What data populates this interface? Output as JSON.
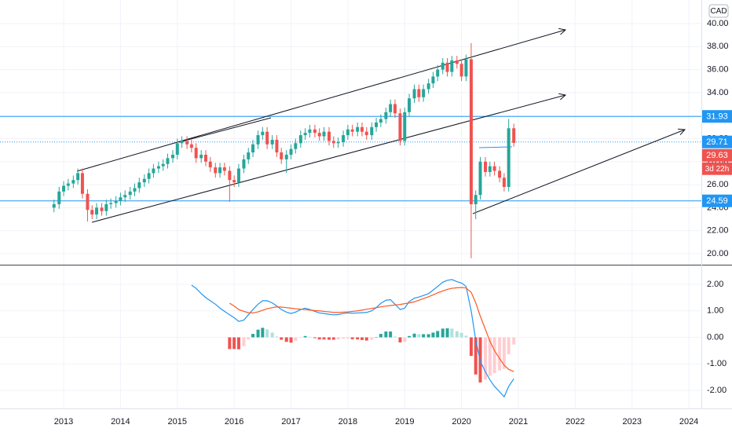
{
  "chart_data": {
    "type": "candlestick",
    "currency": "CAD",
    "last_price": 29.63,
    "countdown": "3d 22h",
    "grid": true,
    "up_color": "#26a69a",
    "down_color": "#ef5350",
    "xlim": [
      2011.88,
      2024.22
    ],
    "xticks": [
      2013,
      2014,
      2015,
      2016,
      2017,
      2018,
      2019,
      2020,
      2021,
      2022,
      2023,
      2024
    ],
    "ylim": [
      19.04,
      42.05
    ],
    "yticks": [
      {
        "value": 20,
        "label": "20.00"
      },
      {
        "value": 22,
        "label": "22.00"
      },
      {
        "value": 24,
        "label": "24.00"
      },
      {
        "value": 26,
        "label": "26.00"
      },
      {
        "value": 28,
        "label": "28.00"
      },
      {
        "value": 30,
        "label": "30.00"
      },
      {
        "value": 32,
        "label": "32.00"
      },
      {
        "value": 34,
        "label": "34.00"
      },
      {
        "value": 36,
        "label": "36.00"
      },
      {
        "value": 38,
        "label": "38.00"
      },
      {
        "value": 40,
        "label": "40.00"
      }
    ],
    "levels": [
      {
        "value": 31.93,
        "color": "#2196f3",
        "style": "solid"
      },
      {
        "value": 29.71,
        "color": "#2196f3",
        "style": "dotted"
      },
      {
        "value": 24.59,
        "color": "#2196f3",
        "style": "solid"
      }
    ],
    "x": [
      2012.83,
      2012.92,
      2013.0,
      2013.08,
      2013.17,
      2013.25,
      2013.33,
      2013.42,
      2013.5,
      2013.58,
      2013.67,
      2013.75,
      2013.83,
      2013.92,
      2014.0,
      2014.08,
      2014.17,
      2014.25,
      2014.33,
      2014.42,
      2014.5,
      2014.58,
      2014.67,
      2014.75,
      2014.83,
      2014.92,
      2015.0,
      2015.08,
      2015.17,
      2015.25,
      2015.33,
      2015.42,
      2015.5,
      2015.58,
      2015.67,
      2015.75,
      2015.83,
      2015.92,
      2016.0,
      2016.08,
      2016.17,
      2016.25,
      2016.33,
      2016.42,
      2016.5,
      2016.58,
      2016.67,
      2016.75,
      2016.83,
      2016.92,
      2017.0,
      2017.08,
      2017.17,
      2017.25,
      2017.33,
      2017.42,
      2017.5,
      2017.58,
      2017.67,
      2017.75,
      2017.83,
      2017.92,
      2018.0,
      2018.08,
      2018.17,
      2018.25,
      2018.33,
      2018.42,
      2018.5,
      2018.58,
      2018.67,
      2018.75,
      2018.83,
      2018.92,
      2019.0,
      2019.08,
      2019.17,
      2019.25,
      2019.33,
      2019.42,
      2019.5,
      2019.58,
      2019.67,
      2019.75,
      2019.83,
      2019.92,
      2020.0,
      2020.08,
      2020.17,
      2020.25,
      2020.33,
      2020.42,
      2020.5,
      2020.58,
      2020.67,
      2020.75,
      2020.83,
      2020.92
    ],
    "open": [
      24.0,
      24.3,
      25.4,
      25.9,
      26.1,
      26.4,
      27.0,
      25.2,
      23.8,
      23.4,
      24.0,
      23.7,
      24.3,
      24.4,
      24.6,
      24.9,
      25.1,
      25.4,
      25.7,
      26.2,
      26.5,
      27.0,
      27.4,
      27.6,
      27.8,
      28.3,
      28.6,
      29.6,
      29.8,
      29.5,
      29.2,
      28.3,
      28.6,
      28.0,
      27.5,
      27.0,
      27.5,
      27.2,
      26.4,
      26.2,
      27.4,
      28.2,
      28.8,
      29.5,
      30.3,
      30.6,
      29.5,
      29.9,
      28.8,
      28.2,
      28.6,
      29.1,
      29.6,
      30.3,
      30.5,
      30.8,
      30.5,
      30.2,
      30.6,
      29.8,
      29.6,
      29.7,
      30.3,
      30.8,
      30.6,
      31.0,
      30.6,
      30.3,
      31.0,
      31.4,
      31.7,
      32.3,
      33.0,
      32.2,
      29.8,
      32.3,
      33.5,
      34.3,
      33.6,
      34.3,
      34.8,
      35.4,
      36.0,
      36.6,
      35.8,
      36.8,
      36.5,
      35.4,
      36.9,
      24.3,
      25.1,
      28.0,
      27.1,
      27.6,
      27.2,
      26.6,
      25.8,
      30.9
    ],
    "high": [
      24.7,
      25.8,
      26.3,
      26.5,
      26.8,
      27.4,
      27.4,
      25.6,
      24.2,
      24.4,
      24.4,
      24.7,
      24.8,
      25.0,
      25.3,
      25.5,
      25.8,
      26.1,
      26.6,
      26.9,
      27.4,
      27.8,
      28.0,
      28.2,
      28.7,
      29.0,
      30.0,
      30.2,
      30.2,
      29.9,
      29.6,
      29.0,
      29.0,
      28.4,
      27.9,
      27.9,
      27.9,
      27.6,
      26.8,
      27.8,
      28.6,
      29.2,
      29.9,
      30.7,
      31.0,
      31.0,
      30.3,
      30.3,
      29.2,
      29.0,
      29.5,
      30.0,
      30.7,
      30.9,
      31.2,
      31.2,
      30.9,
      31.0,
      31.0,
      30.2,
      30.1,
      30.7,
      31.2,
      31.2,
      31.4,
      31.4,
      31.0,
      31.4,
      31.8,
      32.1,
      32.7,
      33.4,
      33.4,
      32.6,
      32.7,
      33.9,
      34.7,
      34.7,
      34.7,
      35.2,
      35.8,
      36.4,
      37.0,
      37.0,
      37.2,
      37.2,
      36.9,
      37.3,
      38.3,
      25.5,
      28.4,
      28.4,
      28.0,
      28.0,
      27.6,
      27.0,
      31.7,
      31.3
    ],
    "low": [
      23.6,
      23.9,
      25.0,
      25.5,
      25.7,
      26.0,
      24.8,
      22.8,
      23.0,
      23.0,
      23.3,
      23.3,
      23.9,
      24.0,
      24.2,
      24.5,
      24.7,
      25.0,
      25.3,
      25.8,
      26.1,
      26.6,
      27.0,
      27.2,
      27.4,
      27.9,
      28.2,
      29.2,
      29.1,
      28.8,
      27.9,
      27.9,
      27.6,
      27.1,
      26.6,
      26.6,
      26.8,
      24.5,
      25.8,
      25.8,
      27.0,
      27.8,
      28.4,
      29.1,
      29.9,
      29.1,
      29.1,
      28.4,
      27.8,
      27.0,
      28.2,
      28.7,
      29.2,
      29.9,
      30.1,
      30.1,
      29.8,
      29.8,
      29.4,
      29.2,
      29.2,
      29.3,
      29.9,
      30.2,
      30.2,
      30.2,
      29.9,
      29.9,
      30.6,
      31.0,
      31.3,
      31.9,
      31.8,
      29.4,
      29.4,
      31.9,
      33.1,
      33.2,
      33.2,
      33.9,
      34.4,
      35.0,
      35.6,
      35.4,
      35.4,
      36.1,
      35.0,
      35.0,
      19.6,
      23.0,
      24.7,
      26.7,
      26.7,
      26.8,
      26.2,
      25.4,
      25.4,
      29.3
    ],
    "close": [
      24.3,
      25.4,
      25.9,
      26.1,
      26.4,
      27.0,
      25.2,
      23.8,
      23.4,
      24.0,
      23.7,
      24.3,
      24.4,
      24.6,
      24.9,
      25.1,
      25.4,
      25.7,
      26.2,
      26.5,
      27.0,
      27.4,
      27.6,
      27.8,
      28.3,
      28.6,
      29.6,
      29.8,
      29.5,
      29.2,
      28.3,
      28.6,
      28.0,
      27.5,
      27.0,
      27.5,
      27.2,
      26.4,
      26.2,
      27.4,
      28.2,
      28.8,
      29.5,
      30.3,
      30.6,
      29.5,
      29.9,
      28.8,
      28.2,
      28.6,
      29.1,
      29.6,
      30.3,
      30.5,
      30.8,
      30.5,
      30.2,
      30.6,
      29.8,
      29.6,
      29.7,
      30.3,
      30.8,
      30.6,
      31.0,
      30.6,
      30.3,
      31.0,
      31.4,
      31.7,
      32.3,
      33.0,
      32.2,
      29.8,
      32.3,
      33.5,
      34.3,
      33.6,
      34.3,
      34.8,
      35.4,
      36.0,
      36.6,
      35.8,
      36.8,
      36.5,
      35.4,
      36.9,
      24.3,
      25.1,
      28.0,
      27.1,
      27.6,
      27.2,
      26.6,
      25.8,
      30.9,
      29.63
    ],
    "indicator": {
      "type": "macd",
      "ylim": [
        -2.68,
        2.71
      ],
      "yticks": [
        {
          "value": -2,
          "label": "-2.00"
        },
        {
          "value": -1,
          "label": "-1.00"
        },
        {
          "value": 0,
          "label": "0.00"
        },
        {
          "value": 1,
          "label": "1.00"
        },
        {
          "value": 2,
          "label": "2.00"
        }
      ],
      "macd": {
        "color": "#2196f3",
        "values": [
          null,
          null,
          null,
          null,
          null,
          null,
          null,
          null,
          null,
          null,
          null,
          null,
          null,
          null,
          null,
          null,
          null,
          null,
          null,
          null,
          null,
          null,
          null,
          null,
          null,
          null,
          null,
          null,
          null,
          1.97,
          1.85,
          1.65,
          1.5,
          1.38,
          1.25,
          1.1,
          0.98,
          0.85,
          0.74,
          0.6,
          0.65,
          0.85,
          1.05,
          1.25,
          1.38,
          1.38,
          1.3,
          1.18,
          1.05,
          0.95,
          0.9,
          0.95,
          1.05,
          1.1,
          1.05,
          0.98,
          0.92,
          0.9,
          0.87,
          0.85,
          0.86,
          0.9,
          0.92,
          0.91,
          0.92,
          0.93,
          0.94,
          1.0,
          1.12,
          1.28,
          1.4,
          1.42,
          1.25,
          1.05,
          1.1,
          1.35,
          1.48,
          1.52,
          1.58,
          1.65,
          1.78,
          1.92,
          2.08,
          2.15,
          2.18,
          2.1,
          2.05,
          1.92,
          1.0,
          -0.1,
          -0.9,
          -1.3,
          -1.6,
          -1.85,
          -2.05,
          -2.24,
          -1.85,
          -1.56
        ]
      },
      "signal": {
        "color": "#ff5722",
        "values": [
          null,
          null,
          null,
          null,
          null,
          null,
          null,
          null,
          null,
          null,
          null,
          null,
          null,
          null,
          null,
          null,
          null,
          null,
          null,
          null,
          null,
          null,
          null,
          null,
          null,
          null,
          null,
          null,
          null,
          null,
          null,
          null,
          null,
          null,
          null,
          null,
          null,
          1.29,
          1.18,
          1.05,
          0.98,
          0.93,
          0.92,
          0.96,
          1.02,
          1.08,
          1.12,
          1.15,
          1.14,
          1.12,
          1.1,
          1.08,
          1.06,
          1.05,
          1.03,
          1.01,
          1.0,
          0.98,
          0.96,
          0.94,
          0.94,
          0.95,
          0.96,
          0.98,
          1.0,
          1.03,
          1.06,
          1.09,
          1.12,
          1.15,
          1.18,
          1.2,
          1.22,
          1.24,
          1.27,
          1.3,
          1.34,
          1.4,
          1.46,
          1.53,
          1.6,
          1.68,
          1.75,
          1.81,
          1.85,
          1.87,
          1.88,
          1.86,
          1.7,
          1.3,
          0.8,
          0.3,
          -0.15,
          -0.5,
          -0.8,
          -1.05,
          -1.21,
          -1.29
        ]
      },
      "histogram": {
        "colors": {
          "above_rising": "#26a69a",
          "above_falling": "#b2dfdb",
          "below_rising": "#ffcdd2",
          "below_falling": "#ef5350"
        },
        "values": [
          null,
          null,
          null,
          null,
          null,
          null,
          null,
          null,
          null,
          null,
          null,
          null,
          null,
          null,
          null,
          null,
          null,
          null,
          null,
          null,
          null,
          null,
          null,
          null,
          null,
          null,
          null,
          null,
          null,
          null,
          null,
          null,
          null,
          null,
          null,
          null,
          null,
          -0.44,
          -0.44,
          -0.45,
          -0.33,
          -0.08,
          0.13,
          0.29,
          0.36,
          0.3,
          0.18,
          0.03,
          -0.09,
          -0.17,
          -0.2,
          -0.13,
          -0.01,
          0.05,
          0.02,
          -0.03,
          -0.08,
          -0.08,
          -0.09,
          -0.09,
          -0.08,
          -0.05,
          -0.04,
          -0.07,
          -0.08,
          -0.1,
          -0.12,
          -0.09,
          0.0,
          0.13,
          0.22,
          0.22,
          0.03,
          -0.19,
          -0.17,
          0.05,
          0.14,
          0.12,
          0.12,
          0.12,
          0.18,
          0.24,
          0.33,
          0.34,
          0.33,
          0.23,
          0.17,
          0.06,
          -0.7,
          -1.4,
          -1.7,
          -1.6,
          -1.45,
          -1.35,
          -1.25,
          -1.19,
          -0.64,
          -0.27
        ]
      }
    }
  }
}
